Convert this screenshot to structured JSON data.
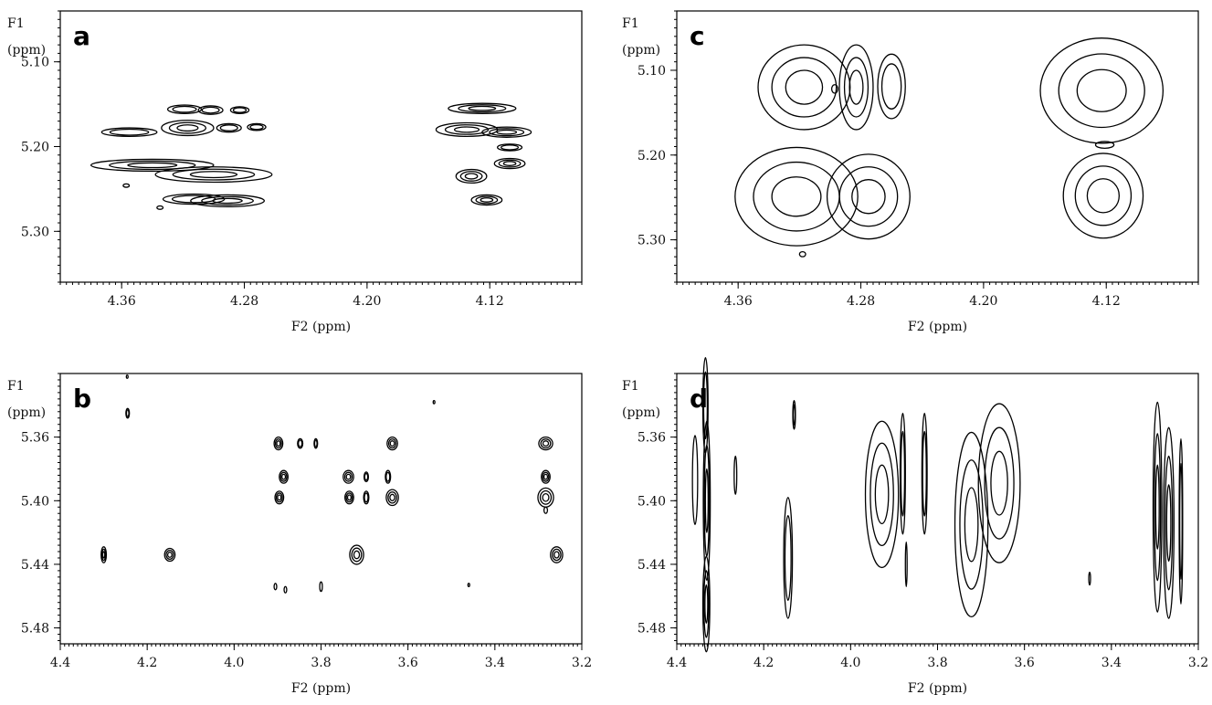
{
  "chart_data": [
    {
      "panel": "a",
      "type": "heatmap",
      "xlabel": "F2 (ppm)",
      "ylabel": [
        "F1",
        "(ppm)"
      ],
      "xlim": [
        4.4,
        4.06
      ],
      "ylim": [
        5.04,
        5.36
      ],
      "xticks": [
        "4.36",
        "4.28",
        "4.20",
        "4.12"
      ],
      "xtick_values": [
        4.36,
        4.28,
        4.2,
        4.12
      ],
      "yticks": [
        "5.10",
        "5.20",
        "5.30"
      ],
      "ytick_values": [
        5.1,
        5.2,
        5.3
      ],
      "peaks": [
        {
          "x": 4.319,
          "y": 5.156,
          "w": 0.011,
          "h": 0.005,
          "levels": 2
        },
        {
          "x": 4.302,
          "y": 5.157,
          "w": 0.008,
          "h": 0.005,
          "levels": 2
        },
        {
          "x": 4.283,
          "y": 5.157,
          "w": 0.006,
          "h": 0.004,
          "levels": 2
        },
        {
          "x": 4.355,
          "y": 5.183,
          "w": 0.018,
          "h": 0.005,
          "levels": 2
        },
        {
          "x": 4.317,
          "y": 5.178,
          "w": 0.017,
          "h": 0.009,
          "levels": 3
        },
        {
          "x": 4.29,
          "y": 5.178,
          "w": 0.008,
          "h": 0.005,
          "levels": 2
        },
        {
          "x": 4.272,
          "y": 5.177,
          "w": 0.006,
          "h": 0.004,
          "levels": 2
        },
        {
          "x": 4.34,
          "y": 5.222,
          "w": 0.04,
          "h": 0.007,
          "levels": 3
        },
        {
          "x": 4.3,
          "y": 5.233,
          "w": 0.038,
          "h": 0.009,
          "levels": 3
        },
        {
          "x": 4.313,
          "y": 5.262,
          "w": 0.02,
          "h": 0.006,
          "levels": 2
        },
        {
          "x": 4.291,
          "y": 5.264,
          "w": 0.024,
          "h": 0.007,
          "levels": 3
        },
        {
          "x": 4.357,
          "y": 5.246,
          "w": 0.002,
          "h": 0.002,
          "levels": 1
        },
        {
          "x": 4.335,
          "y": 5.272,
          "w": 0.002,
          "h": 0.002,
          "levels": 1
        },
        {
          "x": 4.125,
          "y": 5.155,
          "w": 0.022,
          "h": 0.006,
          "levels": 3
        },
        {
          "x": 4.135,
          "y": 5.18,
          "w": 0.02,
          "h": 0.008,
          "levels": 3
        },
        {
          "x": 4.109,
          "y": 5.183,
          "w": 0.016,
          "h": 0.006,
          "levels": 3
        },
        {
          "x": 4.107,
          "y": 5.201,
          "w": 0.008,
          "h": 0.004,
          "levels": 2
        },
        {
          "x": 4.107,
          "y": 5.22,
          "w": 0.01,
          "h": 0.006,
          "levels": 3
        },
        {
          "x": 4.132,
          "y": 5.235,
          "w": 0.01,
          "h": 0.008,
          "levels": 3
        },
        {
          "x": 4.122,
          "y": 5.263,
          "w": 0.01,
          "h": 0.006,
          "levels": 3
        }
      ]
    },
    {
      "panel": "b",
      "type": "heatmap",
      "xlabel": "F2 (ppm)",
      "ylabel": [
        "F1",
        "(ppm)"
      ],
      "xlim": [
        4.4,
        3.2
      ],
      "ylim": [
        5.32,
        5.49
      ],
      "xticks": [
        "4.4",
        "4.2",
        "4.0",
        "3.8",
        "3.6",
        "3.4",
        "3.2"
      ],
      "xtick_values": [
        4.4,
        4.2,
        4.0,
        3.8,
        3.6,
        3.4,
        3.2
      ],
      "yticks": [
        "5.36",
        "5.40",
        "5.44",
        "5.48"
      ],
      "ytick_values": [
        5.36,
        5.4,
        5.44,
        5.48
      ],
      "peaks": [
        {
          "x": 4.246,
          "y": 5.322,
          "w": 0.002,
          "h": 0.001,
          "levels": 1
        },
        {
          "x": 4.245,
          "y": 5.345,
          "w": 0.004,
          "h": 0.003,
          "levels": 2
        },
        {
          "x": 3.54,
          "y": 5.338,
          "w": 0.002,
          "h": 0.001,
          "levels": 1
        },
        {
          "x": 3.898,
          "y": 5.364,
          "w": 0.01,
          "h": 0.004,
          "levels": 3
        },
        {
          "x": 3.848,
          "y": 5.364,
          "w": 0.006,
          "h": 0.003,
          "levels": 2
        },
        {
          "x": 3.812,
          "y": 5.364,
          "w": 0.004,
          "h": 0.003,
          "levels": 2
        },
        {
          "x": 3.636,
          "y": 5.364,
          "w": 0.012,
          "h": 0.004,
          "levels": 3
        },
        {
          "x": 3.283,
          "y": 5.364,
          "w": 0.016,
          "h": 0.004,
          "levels": 3
        },
        {
          "x": 3.886,
          "y": 5.385,
          "w": 0.01,
          "h": 0.004,
          "levels": 3
        },
        {
          "x": 3.737,
          "y": 5.385,
          "w": 0.012,
          "h": 0.004,
          "levels": 3
        },
        {
          "x": 3.696,
          "y": 5.385,
          "w": 0.005,
          "h": 0.003,
          "levels": 2
        },
        {
          "x": 3.646,
          "y": 5.385,
          "w": 0.006,
          "h": 0.004,
          "levels": 2
        },
        {
          "x": 3.283,
          "y": 5.385,
          "w": 0.01,
          "h": 0.004,
          "levels": 3
        },
        {
          "x": 3.896,
          "y": 5.398,
          "w": 0.01,
          "h": 0.004,
          "levels": 3
        },
        {
          "x": 3.735,
          "y": 5.398,
          "w": 0.01,
          "h": 0.004,
          "levels": 3
        },
        {
          "x": 3.696,
          "y": 5.398,
          "w": 0.006,
          "h": 0.004,
          "levels": 2
        },
        {
          "x": 3.636,
          "y": 5.398,
          "w": 0.014,
          "h": 0.005,
          "levels": 3
        },
        {
          "x": 3.283,
          "y": 5.398,
          "w": 0.018,
          "h": 0.006,
          "levels": 3
        },
        {
          "x": 3.283,
          "y": 5.406,
          "w": 0.004,
          "h": 0.002,
          "levels": 1
        },
        {
          "x": 4.3,
          "y": 5.434,
          "w": 0.006,
          "h": 0.005,
          "levels": 3
        },
        {
          "x": 4.148,
          "y": 5.434,
          "w": 0.012,
          "h": 0.004,
          "levels": 3
        },
        {
          "x": 3.718,
          "y": 5.434,
          "w": 0.016,
          "h": 0.006,
          "levels": 3
        },
        {
          "x": 3.258,
          "y": 5.434,
          "w": 0.014,
          "h": 0.005,
          "levels": 3
        },
        {
          "x": 3.905,
          "y": 5.454,
          "w": 0.003,
          "h": 0.002,
          "levels": 1
        },
        {
          "x": 3.882,
          "y": 5.456,
          "w": 0.003,
          "h": 0.002,
          "levels": 1
        },
        {
          "x": 3.8,
          "y": 5.454,
          "w": 0.003,
          "h": 0.003,
          "levels": 1
        },
        {
          "x": 3.46,
          "y": 5.453,
          "w": 0.002,
          "h": 0.001,
          "levels": 1
        }
      ]
    },
    {
      "panel": "c",
      "type": "heatmap",
      "xlabel": "F2 (ppm)",
      "ylabel": [
        "F1",
        "(ppm)"
      ],
      "xlim": [
        4.4,
        4.06
      ],
      "ylim": [
        5.03,
        5.35
      ],
      "xticks": [
        "4.36",
        "4.28",
        "4.20",
        "4.12"
      ],
      "xtick_values": [
        4.36,
        4.28,
        4.2,
        4.12
      ],
      "yticks": [
        "5.10",
        "5.20",
        "5.30"
      ],
      "ytick_values": [
        5.1,
        5.2,
        5.3
      ],
      "peaks": [
        {
          "x": 4.317,
          "y": 5.12,
          "w": 0.03,
          "h": 0.05,
          "levels": 3
        },
        {
          "x": 4.283,
          "y": 5.12,
          "w": 0.011,
          "h": 0.05,
          "levels": 3
        },
        {
          "x": 4.26,
          "y": 5.119,
          "w": 0.009,
          "h": 0.038,
          "levels": 2
        },
        {
          "x": 4.297,
          "y": 5.122,
          "w": 0.002,
          "h": 0.005,
          "levels": 1
        },
        {
          "x": 4.123,
          "y": 5.124,
          "w": 0.04,
          "h": 0.062,
          "levels": 3
        },
        {
          "x": 4.121,
          "y": 5.188,
          "w": 0.006,
          "h": 0.004,
          "levels": 1
        },
        {
          "x": 4.322,
          "y": 5.249,
          "w": 0.04,
          "h": 0.058,
          "levels": 3
        },
        {
          "x": 4.275,
          "y": 5.249,
          "w": 0.027,
          "h": 0.05,
          "levels": 3
        },
        {
          "x": 4.122,
          "y": 5.248,
          "w": 0.026,
          "h": 0.05,
          "levels": 3
        },
        {
          "x": 4.318,
          "y": 5.317,
          "w": 0.002,
          "h": 0.003,
          "levels": 1
        }
      ]
    },
    {
      "panel": "d",
      "type": "heatmap",
      "xlabel": "F2 (ppm)",
      "ylabel": [
        "F1",
        "(ppm)"
      ],
      "xlim": [
        4.4,
        3.2
      ],
      "ylim": [
        5.32,
        5.49
      ],
      "xticks": [
        "4.4",
        "4.2",
        "4.0",
        "3.8",
        "3.6",
        "3.4",
        "3.2"
      ],
      "xtick_values": [
        4.4,
        4.2,
        4.0,
        3.8,
        3.6,
        3.4,
        3.2
      ],
      "yticks": [
        "5.36",
        "5.40",
        "5.44",
        "5.48"
      ],
      "ytick_values": [
        5.36,
        5.4,
        5.44,
        5.48
      ],
      "peaks": [
        {
          "x": 4.358,
          "y": 5.387,
          "w": 0.006,
          "h": 0.028,
          "levels": 1
        },
        {
          "x": 4.334,
          "y": 5.34,
          "w": 0.006,
          "h": 0.03,
          "levels": 2
        },
        {
          "x": 4.331,
          "y": 5.4,
          "w": 0.008,
          "h": 0.05,
          "levels": 3
        },
        {
          "x": 4.332,
          "y": 5.465,
          "w": 0.008,
          "h": 0.03,
          "levels": 3
        },
        {
          "x": 4.265,
          "y": 5.384,
          "w": 0.003,
          "h": 0.012,
          "levels": 1
        },
        {
          "x": 4.13,
          "y": 5.346,
          "w": 0.003,
          "h": 0.009,
          "levels": 2
        },
        {
          "x": 4.144,
          "y": 5.436,
          "w": 0.01,
          "h": 0.038,
          "levels": 2
        },
        {
          "x": 3.928,
          "y": 5.396,
          "w": 0.038,
          "h": 0.046,
          "levels": 3
        },
        {
          "x": 3.88,
          "y": 5.383,
          "w": 0.006,
          "h": 0.038,
          "levels": 2
        },
        {
          "x": 3.83,
          "y": 5.383,
          "w": 0.006,
          "h": 0.038,
          "levels": 2
        },
        {
          "x": 3.872,
          "y": 5.44,
          "w": 0.002,
          "h": 0.014,
          "levels": 1
        },
        {
          "x": 3.722,
          "y": 5.415,
          "w": 0.038,
          "h": 0.058,
          "levels": 3
        },
        {
          "x": 3.658,
          "y": 5.389,
          "w": 0.048,
          "h": 0.05,
          "levels": 3
        },
        {
          "x": 3.45,
          "y": 5.449,
          "w": 0.002,
          "h": 0.004,
          "levels": 1
        },
        {
          "x": 3.294,
          "y": 5.404,
          "w": 0.01,
          "h": 0.066,
          "levels": 3
        },
        {
          "x": 3.268,
          "y": 5.414,
          "w": 0.012,
          "h": 0.06,
          "levels": 3
        },
        {
          "x": 3.24,
          "y": 5.413,
          "w": 0.004,
          "h": 0.052,
          "levels": 2
        }
      ]
    }
  ]
}
